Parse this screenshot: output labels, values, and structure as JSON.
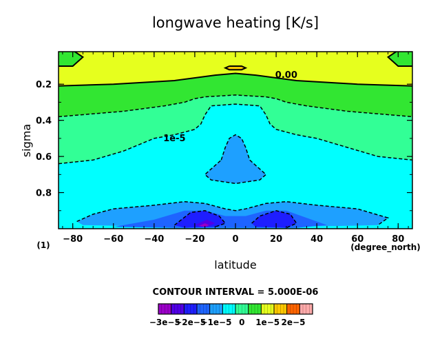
{
  "chart_data": {
    "type": "contour",
    "title": "longwave heating [K/s]",
    "xlabel": "latitude",
    "ylabel": "sigma",
    "x_unit_label": "(degree_north)",
    "corner_label": "(1)",
    "xlim": [
      -87,
      87
    ],
    "ylim": [
      1.0,
      0.02
    ],
    "x_ticks": [
      -80,
      -60,
      -40,
      -20,
      0,
      20,
      40,
      60,
      80
    ],
    "x_tick_labels": [
      "−80",
      "−60",
      "−40",
      "−20",
      "0",
      "20",
      "40",
      "60",
      "80"
    ],
    "y_ticks": [
      0.2,
      0.4,
      0.6,
      0.8
    ],
    "y_tick_labels": [
      "0.2",
      "0.4",
      "0.6",
      "0.8"
    ],
    "contour_interval_text": "CONTOUR INTERVAL = 5.000E-06",
    "contour_labels": [
      {
        "text": "0.00",
        "x": 25,
        "y": 0.15
      },
      {
        "text": "1e-5",
        "x": -30,
        "y": 0.5
      }
    ],
    "colors": {
      "c_m30": "#9a00c8",
      "c_m25": "#5000e6",
      "c_m20": "#1e1eff",
      "c_m15": "#1e64ff",
      "c_m10": "#1ea0ff",
      "c_m5": "#00ffff",
      "c_0": "#32ff96",
      "c_5": "#32e632",
      "c_10": "#e6ff1e",
      "c_15": "#ffc800",
      "c_20": "#ff6400",
      "c_25": "#ffaaaa"
    },
    "regions": [
      {
        "level": "c_5",
        "polygon": [
          [
            -87,
            0.02
          ],
          [
            87,
            0.02
          ],
          [
            87,
            1.0
          ],
          [
            -87,
            1.0
          ]
        ]
      },
      {
        "level": "c_10",
        "polygon": [
          [
            -87,
            0.02
          ],
          [
            87,
            0.02
          ],
          [
            87,
            0.21
          ],
          [
            60,
            0.2
          ],
          [
            30,
            0.18
          ],
          [
            10,
            0.15
          ],
          [
            0,
            0.14
          ],
          [
            -10,
            0.15
          ],
          [
            -30,
            0.18
          ],
          [
            -60,
            0.2
          ],
          [
            -87,
            0.21
          ]
        ]
      },
      {
        "level": "c_15",
        "polygon": [
          [
            -3,
            0.1
          ],
          [
            3,
            0.1
          ],
          [
            5,
            0.11
          ],
          [
            3,
            0.12
          ],
          [
            -3,
            0.12
          ],
          [
            -5,
            0.11
          ]
        ]
      },
      {
        "level": "c_5",
        "polygon": [
          [
            -87,
            0.02
          ],
          [
            -79,
            0.02
          ],
          [
            -75,
            0.05
          ],
          [
            -80,
            0.1
          ],
          [
            -87,
            0.1
          ]
        ]
      },
      {
        "level": "c_5",
        "polygon": [
          [
            87,
            0.02
          ],
          [
            79,
            0.02
          ],
          [
            75,
            0.05
          ],
          [
            80,
            0.1
          ],
          [
            87,
            0.1
          ]
        ]
      },
      {
        "level": "c_0",
        "polygon": [
          [
            -87,
            0.38
          ],
          [
            -55,
            0.35
          ],
          [
            -35,
            0.32
          ],
          [
            -25,
            0.3
          ],
          [
            -20,
            0.28
          ],
          [
            -15,
            0.27
          ],
          [
            0,
            0.26
          ],
          [
            15,
            0.27
          ],
          [
            20,
            0.28
          ],
          [
            25,
            0.3
          ],
          [
            35,
            0.32
          ],
          [
            55,
            0.35
          ],
          [
            87,
            0.38
          ],
          [
            87,
            1.0
          ],
          [
            -87,
            1.0
          ]
        ]
      },
      {
        "level": "c_m5",
        "polygon": [
          [
            -87,
            0.64
          ],
          [
            -70,
            0.62
          ],
          [
            -55,
            0.57
          ],
          [
            -40,
            0.5
          ],
          [
            -30,
            0.48
          ],
          [
            -20,
            0.45
          ],
          [
            -17,
            0.42
          ],
          [
            -15,
            0.37
          ],
          [
            -12,
            0.32
          ],
          [
            0,
            0.31
          ],
          [
            12,
            0.32
          ],
          [
            15,
            0.37
          ],
          [
            17,
            0.42
          ],
          [
            20,
            0.45
          ],
          [
            30,
            0.48
          ],
          [
            40,
            0.5
          ],
          [
            55,
            0.55
          ],
          [
            70,
            0.6
          ],
          [
            87,
            0.62
          ],
          [
            87,
            1.0
          ],
          [
            -87,
            1.0
          ]
        ]
      },
      {
        "level": "c_m10",
        "polygon": [
          [
            -7,
            0.62
          ],
          [
            -5,
            0.55
          ],
          [
            -3,
            0.5
          ],
          [
            0,
            0.48
          ],
          [
            3,
            0.5
          ],
          [
            5,
            0.55
          ],
          [
            7,
            0.62
          ],
          [
            15,
            0.7
          ],
          [
            12,
            0.73
          ],
          [
            0,
            0.75
          ],
          [
            -12,
            0.73
          ],
          [
            -15,
            0.7
          ]
        ]
      },
      {
        "level": "c_m10",
        "polygon": [
          [
            -78,
            0.96
          ],
          [
            -70,
            0.92
          ],
          [
            -60,
            0.89
          ],
          [
            -40,
            0.87
          ],
          [
            -25,
            0.85
          ],
          [
            -15,
            0.86
          ],
          [
            -5,
            0.89
          ],
          [
            0,
            0.9
          ],
          [
            5,
            0.89
          ],
          [
            15,
            0.86
          ],
          [
            25,
            0.85
          ],
          [
            40,
            0.87
          ],
          [
            60,
            0.89
          ],
          [
            75,
            0.94
          ],
          [
            70,
            0.98
          ],
          [
            50,
            0.985
          ],
          [
            0,
            0.99
          ],
          [
            -50,
            0.985
          ],
          [
            -75,
            0.98
          ]
        ]
      },
      {
        "level": "c_m15",
        "polygon": [
          [
            -60,
            0.99
          ],
          [
            -40,
            0.95
          ],
          [
            -25,
            0.9
          ],
          [
            -15,
            0.9
          ],
          [
            -5,
            0.93
          ],
          [
            5,
            0.93
          ],
          [
            15,
            0.9
          ],
          [
            25,
            0.9
          ],
          [
            35,
            0.94
          ],
          [
            45,
            0.98
          ],
          [
            30,
            0.995
          ],
          [
            -30,
            0.995
          ]
        ]
      },
      {
        "level": "c_m20",
        "polygon": [
          [
            -30,
            0.98
          ],
          [
            -22,
            0.91
          ],
          [
            -15,
            0.9
          ],
          [
            -8,
            0.93
          ],
          [
            -5,
            0.97
          ],
          [
            -10,
            0.99
          ],
          [
            -25,
            0.995
          ]
        ]
      },
      {
        "level": "c_m20",
        "polygon": [
          [
            8,
            0.97
          ],
          [
            12,
            0.93
          ],
          [
            20,
            0.9
          ],
          [
            27,
            0.92
          ],
          [
            30,
            0.97
          ],
          [
            25,
            0.995
          ],
          [
            10,
            0.99
          ]
        ]
      },
      {
        "level": "c_m25",
        "polygon": [
          [
            -20,
            0.98
          ],
          [
            -14,
            0.95
          ],
          [
            -10,
            0.97
          ],
          [
            -14,
            0.99
          ]
        ]
      },
      {
        "level": "c_m30",
        "polygon": [
          [
            -18,
            0.985
          ],
          [
            -15,
            0.97
          ],
          [
            -13,
            0.98
          ],
          [
            -15,
            0.99
          ]
        ]
      }
    ],
    "contour_lines": [
      {
        "style": "solid",
        "points": [
          [
            -87,
            0.21
          ],
          [
            -60,
            0.2
          ],
          [
            -30,
            0.18
          ],
          [
            -10,
            0.15
          ],
          [
            0,
            0.14
          ],
          [
            10,
            0.15
          ],
          [
            30,
            0.18
          ],
          [
            60,
            0.2
          ],
          [
            87,
            0.21
          ]
        ]
      },
      {
        "style": "solid",
        "points": [
          [
            -79,
            0.02
          ],
          [
            -75,
            0.05
          ],
          [
            -80,
            0.1
          ],
          [
            -87,
            0.1
          ]
        ]
      },
      {
        "style": "solid",
        "points": [
          [
            79,
            0.02
          ],
          [
            75,
            0.05
          ],
          [
            80,
            0.1
          ],
          [
            87,
            0.1
          ]
        ]
      },
      {
        "style": "solid",
        "points": [
          [
            -3,
            0.1
          ],
          [
            3,
            0.1
          ],
          [
            5,
            0.11
          ],
          [
            3,
            0.12
          ],
          [
            -3,
            0.12
          ],
          [
            -5,
            0.11
          ],
          [
            -3,
            0.1
          ]
        ]
      },
      {
        "style": "dashed",
        "points": [
          [
            -87,
            0.38
          ],
          [
            -55,
            0.35
          ],
          [
            -35,
            0.32
          ],
          [
            -25,
            0.3
          ],
          [
            -20,
            0.28
          ],
          [
            -15,
            0.27
          ],
          [
            0,
            0.26
          ],
          [
            15,
            0.27
          ],
          [
            20,
            0.28
          ],
          [
            25,
            0.3
          ],
          [
            35,
            0.32
          ],
          [
            55,
            0.35
          ],
          [
            87,
            0.38
          ]
        ]
      },
      {
        "style": "dashed",
        "points": [
          [
            -87,
            0.64
          ],
          [
            -70,
            0.62
          ],
          [
            -55,
            0.57
          ],
          [
            -40,
            0.5
          ],
          [
            -30,
            0.48
          ],
          [
            -20,
            0.45
          ],
          [
            -17,
            0.42
          ],
          [
            -15,
            0.37
          ],
          [
            -12,
            0.32
          ],
          [
            0,
            0.31
          ],
          [
            12,
            0.32
          ],
          [
            15,
            0.37
          ],
          [
            17,
            0.42
          ],
          [
            20,
            0.45
          ],
          [
            30,
            0.48
          ],
          [
            40,
            0.5
          ],
          [
            55,
            0.55
          ],
          [
            70,
            0.6
          ],
          [
            87,
            0.62
          ]
        ]
      },
      {
        "style": "dashed",
        "points": [
          [
            -7,
            0.62
          ],
          [
            -5,
            0.55
          ],
          [
            -3,
            0.5
          ],
          [
            0,
            0.48
          ],
          [
            3,
            0.5
          ],
          [
            5,
            0.55
          ],
          [
            7,
            0.62
          ],
          [
            15,
            0.7
          ],
          [
            12,
            0.73
          ],
          [
            0,
            0.75
          ],
          [
            -12,
            0.73
          ],
          [
            -15,
            0.7
          ],
          [
            -7,
            0.62
          ]
        ]
      },
      {
        "style": "dashed",
        "points": [
          [
            -78,
            0.96
          ],
          [
            -70,
            0.92
          ],
          [
            -60,
            0.89
          ],
          [
            -40,
            0.87
          ],
          [
            -25,
            0.85
          ],
          [
            -15,
            0.86
          ],
          [
            -5,
            0.89
          ],
          [
            0,
            0.9
          ],
          [
            5,
            0.89
          ],
          [
            15,
            0.86
          ],
          [
            25,
            0.85
          ],
          [
            40,
            0.87
          ],
          [
            60,
            0.89
          ],
          [
            75,
            0.94
          ],
          [
            70,
            0.98
          ]
        ]
      },
      {
        "style": "dashed",
        "points": [
          [
            -30,
            0.98
          ],
          [
            -22,
            0.91
          ],
          [
            -15,
            0.9
          ],
          [
            -8,
            0.93
          ],
          [
            -5,
            0.97
          ],
          [
            -10,
            0.99
          ]
        ]
      },
      {
        "style": "dashed",
        "points": [
          [
            8,
            0.97
          ],
          [
            12,
            0.93
          ],
          [
            20,
            0.9
          ],
          [
            27,
            0.92
          ],
          [
            30,
            0.97
          ],
          [
            25,
            0.995
          ]
        ]
      }
    ],
    "colorbar": {
      "levels": [
        "c_m30",
        "c_m25",
        "c_m20",
        "c_m15",
        "c_m10",
        "c_m5",
        "c_0",
        "c_5",
        "c_10",
        "c_15",
        "c_20",
        "c_25"
      ],
      "tick_labels": [
        "−3e−5",
        "−2e−5",
        "−1e−5",
        "0",
        "1e−5",
        "2e−5"
      ]
    }
  }
}
